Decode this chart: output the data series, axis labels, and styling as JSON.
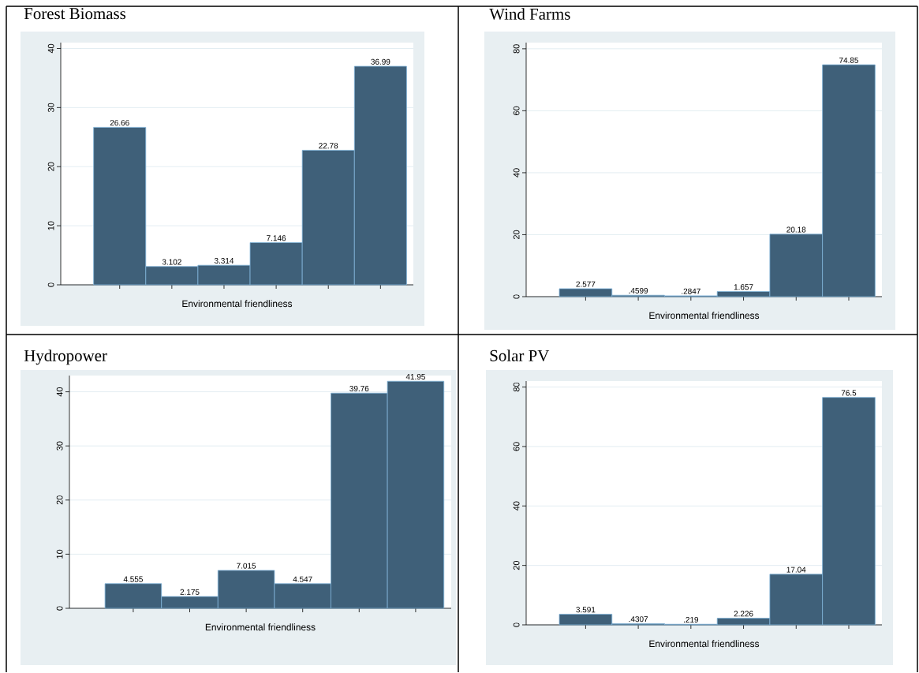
{
  "chart_data": [
    {
      "type": "bar",
      "title": "Forest Biomass",
      "xlabel": "Environmental friendliness",
      "categories": [
        null,
        null,
        null,
        null,
        null,
        null
      ],
      "values": [
        26.66,
        3.102,
        3.314,
        7.146,
        22.78,
        36.99
      ],
      "value_labels": [
        "26.66",
        "3.102",
        "3.314",
        "7.146",
        "22.78",
        "36.99"
      ],
      "color": "#3f6079",
      "ylim": [
        0,
        41
      ],
      "yticks": [
        0,
        10,
        20,
        30,
        40
      ],
      "grid": "y"
    },
    {
      "type": "bar",
      "title": "Wind Farms",
      "xlabel": "Environmental friendliness",
      "categories": [
        null,
        null,
        null,
        null,
        null,
        null
      ],
      "values": [
        2.577,
        0.4599,
        0.2847,
        1.657,
        20.18,
        74.85
      ],
      "value_labels": [
        "2.577",
        ".4599",
        ".2847",
        "1.657",
        "20.18",
        "74.85"
      ],
      "color": "#3f6079",
      "ylim": [
        0,
        82
      ],
      "yticks": [
        0,
        20,
        40,
        60,
        80
      ],
      "grid": "y"
    },
    {
      "type": "bar",
      "title": "Hydropower",
      "xlabel": "Environmental friendliness",
      "categories": [
        null,
        null,
        null,
        null,
        null,
        null
      ],
      "values": [
        4.555,
        2.175,
        7.015,
        4.547,
        39.76,
        41.95
      ],
      "value_labels": [
        "4.555",
        "2.175",
        "7.015",
        "4.547",
        "39.76",
        "41.95"
      ],
      "color": "#3f6079",
      "ylim": [
        0,
        43
      ],
      "yticks": [
        0,
        10,
        20,
        30,
        40
      ],
      "grid": "y"
    },
    {
      "type": "bar",
      "title": "Solar PV",
      "xlabel": "Environmental friendliness",
      "categories": [
        null,
        null,
        null,
        null,
        null,
        null
      ],
      "values": [
        3.591,
        0.4307,
        0.219,
        2.226,
        17.04,
        76.5
      ],
      "value_labels": [
        "3.591",
        ".4307",
        ".219",
        "2.226",
        "17.04",
        "76.5"
      ],
      "color": "#3f6079",
      "ylim": [
        0,
        82
      ],
      "yticks": [
        0,
        20,
        40,
        60,
        80
      ],
      "grid": "y"
    }
  ]
}
